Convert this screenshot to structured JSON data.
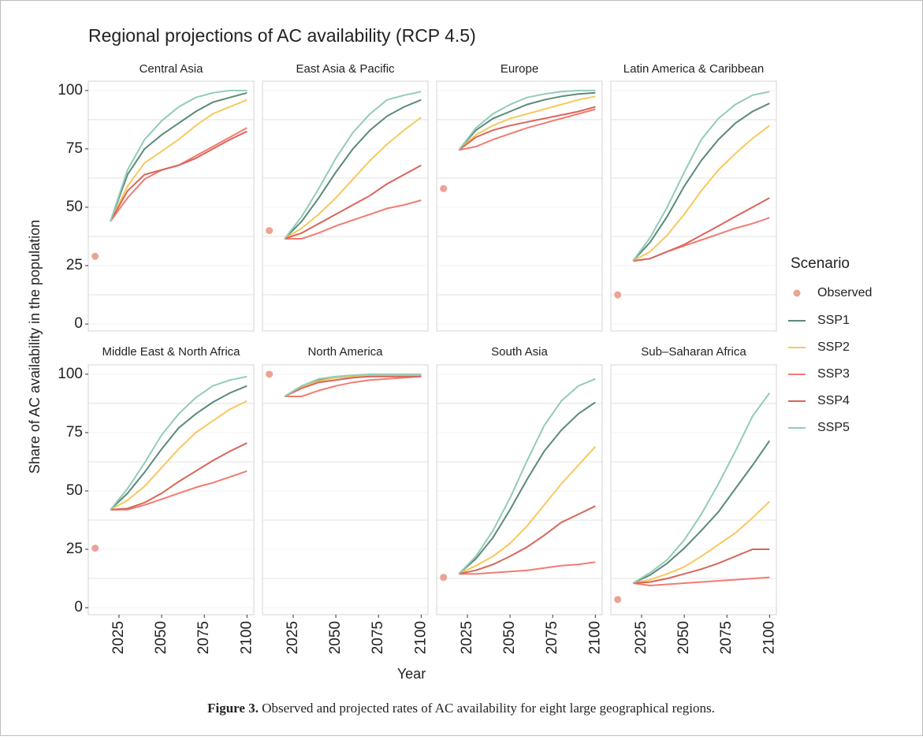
{
  "chart_data": {
    "type": "line",
    "title": "Regional projections of AC availability (RCP 4.5)",
    "x_label": "Year",
    "y_label": "Share of AC availability in the population",
    "legend_title": "Scenario",
    "caption_label": "Figure 3.",
    "caption_text": "Observed and projected rates of AC availability for eight large geographical regions.",
    "observed_name": "Observed",
    "observed_color": "#eba394",
    "x": [
      2020,
      2030,
      2040,
      2050,
      2060,
      2070,
      2080,
      2090,
      2100
    ],
    "xlim": [
      2007,
      2104
    ],
    "xticks": [
      2025,
      2050,
      2075,
      2100
    ],
    "ylim": [
      -3,
      104
    ],
    "yticks": [
      0,
      25,
      50,
      75,
      100
    ],
    "yminor": [
      12.5,
      37.5,
      62.5,
      87.5
    ],
    "grid": true,
    "legend": "right",
    "series": [
      {
        "name": "SSP1",
        "color": "#5b8a78"
      },
      {
        "name": "SSP2",
        "color": "#f7c95c"
      },
      {
        "name": "SSP3",
        "color": "#f27b72"
      },
      {
        "name": "SSP4",
        "color": "#d8655b"
      },
      {
        "name": "SSP5",
        "color": "#92ccb6"
      }
    ],
    "panels": [
      {
        "title": "Central Asia",
        "observed": {
          "x": 2011,
          "value": 29
        },
        "series": [
          {
            "values": [
              44,
              64,
              75,
              81,
              86,
              91,
              95,
              97,
              99
            ]
          },
          {
            "values": [
              44,
              59,
              69,
              74,
              79,
              85,
              90,
              93,
              96
            ]
          },
          {
            "values": [
              44,
              54,
              62,
              66,
              68,
              72,
              76,
              80,
              84
            ]
          },
          {
            "values": [
              44,
              57,
              64,
              66,
              68,
              71,
              75,
              79,
              82.5
            ]
          },
          {
            "values": [
              44,
              66,
              79,
              87,
              93,
              97,
              99,
              100,
              100
            ]
          }
        ]
      },
      {
        "title": "East Asia & Pacific",
        "observed": {
          "x": 2011,
          "value": 40
        },
        "series": [
          {
            "values": [
              36.5,
              44,
              54,
              65,
              75,
              83,
              89,
              93,
              96
            ]
          },
          {
            "values": [
              36.5,
              41,
              47,
              54,
              62,
              70,
              77,
              83,
              88.5
            ]
          },
          {
            "values": [
              36.5,
              36.5,
              39,
              42,
              44.5,
              47,
              49.5,
              51,
              53
            ]
          },
          {
            "values": [
              36.5,
              39,
              43,
              47,
              51,
              55,
              60,
              64,
              68
            ]
          },
          {
            "values": [
              36.5,
              46,
              58,
              71,
              82,
              90,
              96,
              98,
              99.5
            ]
          }
        ]
      },
      {
        "title": "Europe",
        "observed": {
          "x": 2011,
          "value": 58
        },
        "series": [
          {
            "values": [
              74.5,
              83,
              88,
              91,
              94,
              96,
              97.5,
              98.5,
              99
            ]
          },
          {
            "values": [
              74.5,
              81,
              85,
              88,
              90,
              92,
              94,
              96,
              97.5
            ]
          },
          {
            "values": [
              74.5,
              76,
              79,
              81.5,
              84,
              86,
              88,
              90,
              92
            ]
          },
          {
            "values": [
              74.5,
              80,
              83,
              85,
              86.5,
              88,
              89.5,
              91,
              93
            ]
          },
          {
            "values": [
              74.5,
              84,
              90,
              94,
              97,
              98.5,
              99.5,
              100,
              100
            ]
          }
        ]
      },
      {
        "title": "Latin America & Caribbean",
        "observed": {
          "x": 2011,
          "value": 12.5
        },
        "series": [
          {
            "values": [
              27,
              35,
              46,
              59,
              70,
              79,
              86,
              91,
              94.5
            ]
          },
          {
            "values": [
              27,
              31,
              38,
              47,
              57,
              66,
              73,
              79.5,
              85
            ]
          },
          {
            "values": [
              27,
              28,
              31,
              33.5,
              36,
              38.5,
              41,
              43,
              45.5
            ]
          },
          {
            "values": [
              27,
              28,
              31,
              34,
              38,
              42,
              46,
              50,
              54
            ]
          },
          {
            "values": [
              27,
              37,
              50,
              65,
              79,
              88,
              94,
              98,
              99.5
            ]
          }
        ]
      },
      {
        "title": "Middle East & North Africa",
        "observed": {
          "x": 2011,
          "value": 25.5
        },
        "series": [
          {
            "values": [
              42,
              49,
              58,
              68,
              77,
              83,
              88,
              92,
              95
            ]
          },
          {
            "values": [
              42,
              46,
              52,
              60,
              68,
              75,
              80,
              85,
              88.5
            ]
          },
          {
            "values": [
              42,
              42,
              44,
              46.5,
              49,
              51.5,
              53.5,
              56,
              58.5
            ]
          },
          {
            "values": [
              42,
              42.5,
              45,
              49,
              54,
              58.5,
              63,
              67,
              70.5
            ]
          },
          {
            "values": [
              42,
              51,
              62,
              74,
              83,
              90,
              95,
              97.5,
              99
            ]
          }
        ]
      },
      {
        "title": "North America",
        "observed": {
          "x": 2011,
          "value": 100
        },
        "series": [
          {
            "values": [
              90.5,
              95,
              97.5,
              98.5,
              99,
              99.5,
              99.5,
              99.5,
              99.5
            ]
          },
          {
            "values": [
              90.5,
              94.5,
              97,
              98.5,
              99,
              99.5,
              99.5,
              99.5,
              99.5
            ]
          },
          {
            "values": [
              90.5,
              90.5,
              93,
              95,
              96.5,
              97.5,
              98,
              98.5,
              99
            ]
          },
          {
            "values": [
              90.5,
              94,
              96.5,
              97.5,
              98.5,
              99,
              99,
              99,
              99
            ]
          },
          {
            "values": [
              90.5,
              95,
              98,
              99,
              99.5,
              100,
              100,
              100,
              100
            ]
          }
        ]
      },
      {
        "title": "South Asia",
        "observed": {
          "x": 2011,
          "value": 13
        },
        "series": [
          {
            "values": [
              14.5,
              21,
              30,
              42,
              55,
              67,
              76,
              83,
              88
            ]
          },
          {
            "values": [
              14.5,
              18,
              22,
              27.5,
              35,
              44,
              53,
              61,
              69
            ]
          },
          {
            "values": [
              14.5,
              14.5,
              15,
              15.5,
              16,
              17,
              18,
              18.5,
              19.5
            ]
          },
          {
            "values": [
              14.5,
              16,
              18.5,
              22,
              26,
              31,
              36.5,
              40,
              43.5
            ]
          },
          {
            "values": [
              14.5,
              22,
              33,
              47,
              63,
              78,
              88.5,
              95,
              98
            ]
          }
        ]
      },
      {
        "title": "Sub–Saharan Africa",
        "observed": {
          "x": 2011,
          "value": 3.5
        },
        "series": [
          {
            "values": [
              10.5,
              14,
              19,
              25.5,
              33,
              41,
              51,
              61,
              71.5
            ]
          },
          {
            "values": [
              10.5,
              12,
              14.5,
              17.5,
              22,
              27,
              32,
              38.5,
              45.5
            ]
          },
          {
            "values": [
              10.5,
              9.5,
              10,
              10.5,
              11,
              11.5,
              12,
              12.5,
              13
            ]
          },
          {
            "values": [
              10.5,
              11,
              12.5,
              14.5,
              16.5,
              19,
              22,
              25,
              25
            ]
          },
          {
            "values": [
              10.5,
              15,
              20.5,
              29,
              40,
              53,
              67,
              82,
              92
            ]
          }
        ]
      }
    ]
  }
}
